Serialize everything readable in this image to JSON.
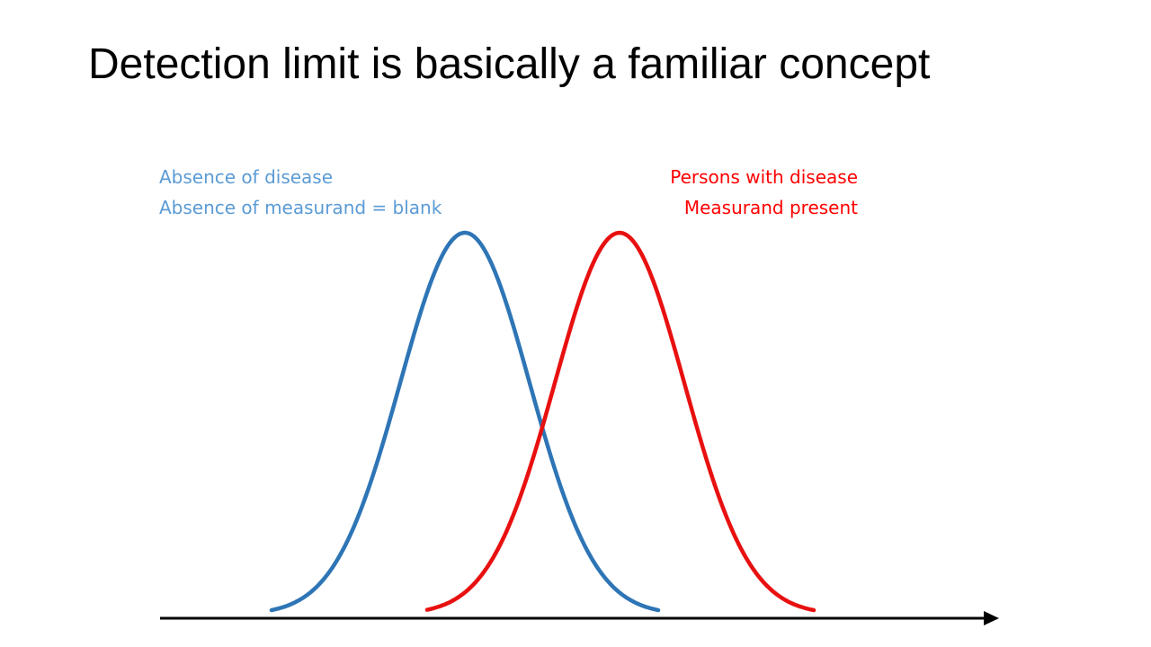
{
  "slide": {
    "title": "Detection limit is basically a familiar concept"
  },
  "left_population": {
    "line1": "Absence of disease",
    "line2": "Absence of measurand = blank",
    "color": "#5B9BD5",
    "curve_color": "#2E75B6"
  },
  "right_population": {
    "line1": "Persons with disease",
    "line2": "Measurand present",
    "color": "#FF0000",
    "curve_color": "#E81010"
  },
  "axis": {
    "color": "#000000",
    "arrow": "right-arrow-icon"
  }
}
